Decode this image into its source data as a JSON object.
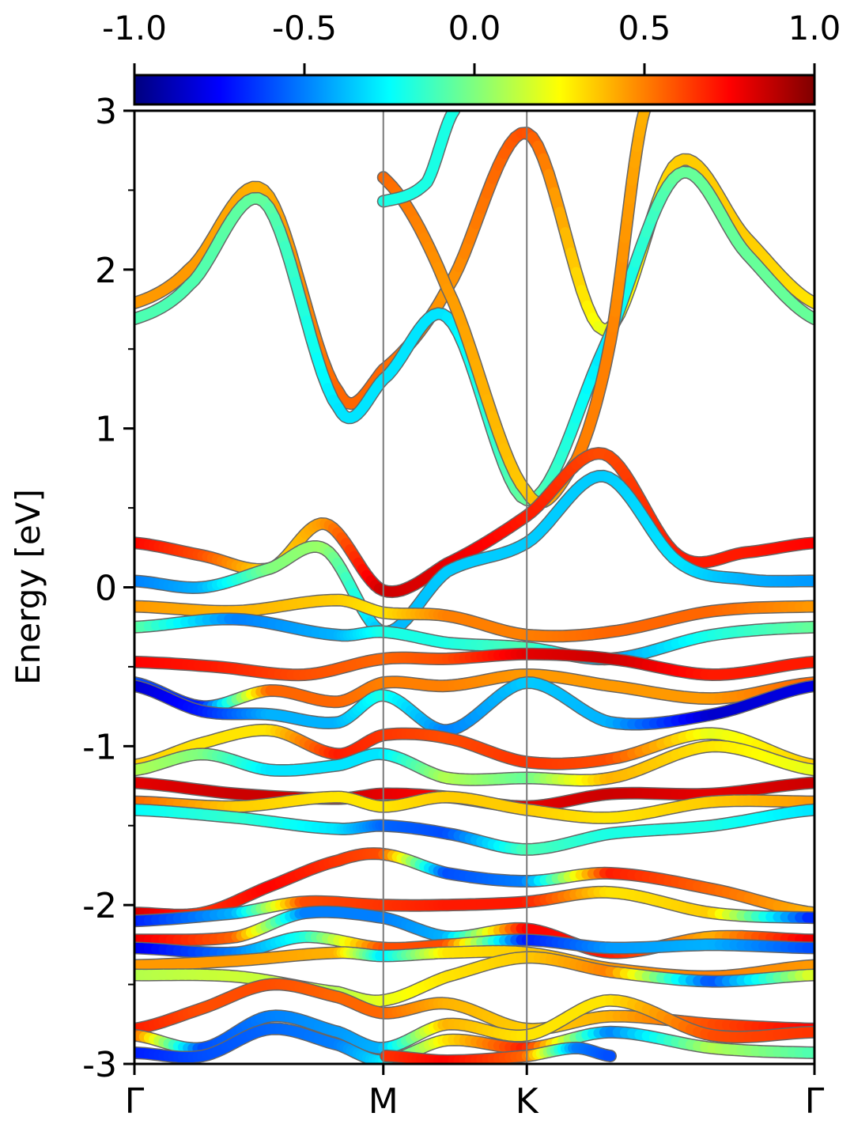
{
  "chart_data": {
    "type": "line",
    "title": "",
    "xlabel": "",
    "ylabel": "Energy [eV]",
    "ylim": [
      -3,
      3
    ],
    "yticks": [
      {
        "value": 3,
        "label": "3"
      },
      {
        "value": 2,
        "label": "2"
      },
      {
        "value": 1,
        "label": "1"
      },
      {
        "value": 0,
        "label": "0"
      },
      {
        "value": -1,
        "label": "-1"
      },
      {
        "value": -2,
        "label": "-2"
      },
      {
        "value": -3,
        "label": "-3"
      }
    ],
    "yminor": [
      2.5,
      1.5,
      0.5,
      -0.5,
      -1.5,
      -2.5
    ],
    "kpoints": [
      {
        "label": "Γ",
        "x": 0.0
      },
      {
        "label": "M",
        "x": 0.366
      },
      {
        "label": "K",
        "x": 0.577
      },
      {
        "label": "Γ",
        "x": 1.0
      }
    ],
    "colorbar": {
      "range": [
        -1.0,
        1.0
      ],
      "ticks": [
        {
          "value": -1.0,
          "label": "-1.0"
        },
        {
          "value": -0.5,
          "label": "-0.5"
        },
        {
          "value": 0.0,
          "label": "0.0"
        },
        {
          "value": 0.5,
          "label": "0.5"
        },
        {
          "value": 1.0,
          "label": "1.0"
        }
      ],
      "colormap": [
        "#00007f",
        "#0000ff",
        "#007fff",
        "#00ffff",
        "#7fff7f",
        "#ffff00",
        "#ff7f00",
        "#ff0000",
        "#7f0000"
      ]
    },
    "series": [
      {
        "x": [
          0,
          0.08,
          0.19,
          0.3,
          0.366,
          0.46,
          0.577,
          0.69,
          0.8,
          0.9,
          1.0
        ],
        "y": [
          1.79,
          2.0,
          2.5,
          1.23,
          1.37,
          1.88,
          2.86,
          1.62,
          2.68,
          2.2,
          1.79
        ],
        "c": [
          0.45,
          0.45,
          0.4,
          0.55,
          0.55,
          0.45,
          0.6,
          0.2,
          0.35,
          0.35,
          0.3
        ]
      },
      {
        "x": [
          0,
          0.08,
          0.19,
          0.3,
          0.366,
          0.46,
          0.577,
          0.69,
          0.8,
          0.9,
          1.0
        ],
        "y": [
          1.69,
          1.9,
          2.43,
          1.13,
          1.31,
          1.7,
          0.55,
          1.5,
          2.6,
          2.1,
          1.69
        ],
        "c": [
          -0.1,
          -0.1,
          -0.05,
          -0.3,
          -0.3,
          -0.3,
          -0.05,
          -0.3,
          -0.05,
          -0.05,
          -0.05
        ]
      },
      {
        "x": [
          0.366,
          0.46,
          0.577,
          0.65,
          0.7,
          0.75
        ],
        "y": [
          2.58,
          1.88,
          0.6,
          0.8,
          1.55,
          3.0
        ],
        "c": [
          0.55,
          0.45,
          0.35,
          0.5,
          0.5,
          0.4
        ]
      },
      {
        "x": [
          0.366,
          0.43,
          0.47
        ],
        "y": [
          2.43,
          2.55,
          3.0
        ],
        "c": [
          -0.2,
          -0.2,
          -0.2
        ]
      },
      {
        "x": [
          0.0,
          0.1,
          0.2,
          0.28,
          0.366,
          0.46,
          0.577,
          0.69,
          0.8,
          0.9,
          1.0
        ],
        "y": [
          0.28,
          0.2,
          0.12,
          0.4,
          -0.02,
          0.15,
          0.45,
          0.84,
          0.2,
          0.22,
          0.28
        ],
        "c": [
          0.75,
          0.6,
          0.3,
          0.45,
          0.85,
          0.8,
          0.7,
          0.6,
          0.7,
          0.7,
          0.75
        ]
      },
      {
        "x": [
          0.0,
          0.1,
          0.2,
          0.28,
          0.366,
          0.46,
          0.577,
          0.69,
          0.8,
          0.9,
          1.0
        ],
        "y": [
          0.04,
          0.0,
          0.12,
          0.24,
          -0.28,
          0.1,
          0.28,
          0.7,
          0.16,
          0.05,
          0.04
        ],
        "c": [
          -0.5,
          -0.4,
          0.0,
          0.05,
          -0.4,
          -0.35,
          -0.35,
          -0.35,
          -0.3,
          -0.4,
          -0.45
        ]
      },
      {
        "x": [
          0.0,
          0.15,
          0.3,
          0.366,
          0.46,
          0.577,
          0.7,
          0.85,
          1.0
        ],
        "y": [
          -0.12,
          -0.15,
          -0.08,
          -0.16,
          -0.18,
          -0.3,
          -0.28,
          -0.15,
          -0.12
        ],
        "c": [
          0.45,
          0.4,
          0.35,
          0.3,
          0.5,
          0.5,
          0.55,
          0.55,
          0.45
        ]
      },
      {
        "x": [
          0.0,
          0.15,
          0.3,
          0.366,
          0.46,
          0.577,
          0.7,
          0.85,
          1.0
        ],
        "y": [
          -0.25,
          -0.2,
          -0.3,
          -0.28,
          -0.35,
          -0.38,
          -0.45,
          -0.3,
          -0.25
        ],
        "c": [
          -0.05,
          -0.5,
          -0.4,
          -0.2,
          -0.2,
          -0.1,
          -0.45,
          -0.2,
          -0.05
        ]
      },
      {
        "x": [
          0.0,
          0.12,
          0.25,
          0.366,
          0.46,
          0.577,
          0.7,
          0.85,
          1.0
        ],
        "y": [
          -0.47,
          -0.5,
          -0.55,
          -0.45,
          -0.45,
          -0.42,
          -0.45,
          -0.55,
          -0.47
        ],
        "c": [
          0.75,
          0.7,
          0.6,
          0.55,
          0.6,
          0.8,
          0.85,
          0.7,
          0.7
        ]
      },
      {
        "x": [
          0.0,
          0.1,
          0.2,
          0.3,
          0.366,
          0.46,
          0.577,
          0.7,
          0.85,
          1.0
        ],
        "y": [
          -0.6,
          -0.75,
          -0.65,
          -0.72,
          -0.6,
          -0.62,
          -0.55,
          -0.62,
          -0.7,
          -0.6
        ],
        "c": [
          -0.6,
          -0.7,
          0.55,
          0.55,
          0.5,
          0.5,
          0.45,
          0.45,
          0.45,
          0.55
        ]
      },
      {
        "x": [
          0.0,
          0.1,
          0.2,
          0.3,
          0.366,
          0.46,
          0.577,
          0.7,
          0.85,
          1.0
        ],
        "y": [
          -0.62,
          -0.78,
          -0.8,
          -0.85,
          -0.68,
          -0.9,
          -0.6,
          -0.85,
          -0.8,
          -0.62
        ],
        "c": [
          -0.85,
          -0.7,
          -0.4,
          -0.4,
          -0.2,
          -0.5,
          -0.35,
          -0.4,
          -0.85,
          -0.8
        ]
      },
      {
        "x": [
          0.0,
          0.1,
          0.2,
          0.3,
          0.366,
          0.46,
          0.577,
          0.7,
          0.85,
          1.0
        ],
        "y": [
          -1.12,
          -0.98,
          -0.9,
          -1.05,
          -0.93,
          -0.95,
          -1.1,
          -1.08,
          -0.92,
          -1.12
        ],
        "c": [
          0.35,
          0.3,
          0.3,
          0.7,
          0.65,
          0.6,
          0.65,
          0.6,
          0.2,
          0.35
        ]
      },
      {
        "x": [
          0.0,
          0.1,
          0.2,
          0.3,
          0.366,
          0.46,
          0.577,
          0.7,
          0.85,
          1.0
        ],
        "y": [
          -1.15,
          -1.05,
          -1.15,
          -1.12,
          -1.05,
          -1.2,
          -1.2,
          -1.2,
          -1.0,
          -1.15
        ],
        "c": [
          0.1,
          0.0,
          -0.3,
          -0.3,
          -0.3,
          0.1,
          -0.05,
          0.4,
          0.3,
          0.2
        ]
      },
      {
        "x": [
          0.0,
          0.15,
          0.3,
          0.366,
          0.46,
          0.577,
          0.7,
          0.85,
          1.0
        ],
        "y": [
          -1.23,
          -1.3,
          -1.33,
          -1.3,
          -1.32,
          -1.38,
          -1.3,
          -1.3,
          -1.23
        ],
        "c": [
          0.8,
          0.85,
          0.85,
          0.8,
          0.75,
          0.8,
          0.85,
          0.8,
          0.85
        ]
      },
      {
        "x": [
          0.0,
          0.15,
          0.3,
          0.366,
          0.46,
          0.577,
          0.7,
          0.85,
          1.0
        ],
        "y": [
          -1.35,
          -1.38,
          -1.32,
          -1.38,
          -1.32,
          -1.4,
          -1.45,
          -1.35,
          -1.35
        ],
        "c": [
          0.55,
          0.35,
          0.3,
          0.3,
          0.35,
          0.35,
          0.3,
          0.35,
          0.45
        ]
      },
      {
        "x": [
          0.0,
          0.15,
          0.3,
          0.366,
          0.46,
          0.577,
          0.7,
          0.85,
          1.0
        ],
        "y": [
          -1.4,
          -1.45,
          -1.52,
          -1.5,
          -1.55,
          -1.65,
          -1.55,
          -1.5,
          -1.4
        ],
        "c": [
          -0.25,
          -0.15,
          -0.3,
          -0.55,
          -0.6,
          -0.1,
          -0.2,
          -0.2,
          -0.3
        ]
      },
      {
        "x": [
          0.0,
          0.1,
          0.2,
          0.3,
          0.366,
          0.46,
          0.577,
          0.7,
          0.85,
          1.0
        ],
        "y": [
          -2.05,
          -2.05,
          -1.88,
          -1.72,
          -1.68,
          -1.8,
          -1.85,
          -1.8,
          -1.9,
          -2.05
        ],
        "c": [
          0.85,
          0.65,
          0.75,
          0.65,
          0.6,
          -0.6,
          -0.5,
          0.7,
          0.55,
          0.4
        ]
      },
      {
        "x": [
          0.0,
          0.15,
          0.25,
          0.366,
          0.46,
          0.577,
          0.7,
          0.85,
          1.0
        ],
        "y": [
          -2.1,
          -2.05,
          -1.98,
          -2.0,
          -2.0,
          -1.98,
          -1.92,
          -2.05,
          -2.08
        ],
        "c": [
          -0.7,
          -0.4,
          0.6,
          0.65,
          0.7,
          0.7,
          0.3,
          0.35,
          -0.7
        ]
      },
      {
        "x": [
          0.0,
          0.15,
          0.25,
          0.366,
          0.46,
          0.577,
          0.7,
          0.85,
          1.0
        ],
        "y": [
          -2.22,
          -2.2,
          -2.05,
          -2.08,
          -2.2,
          -2.15,
          -2.3,
          -2.2,
          -2.22
        ],
        "c": [
          0.8,
          0.55,
          -0.5,
          -0.5,
          -0.4,
          0.75,
          0.7,
          0.4,
          0.8
        ]
      },
      {
        "x": [
          0.0,
          0.15,
          0.25,
          0.366,
          0.46,
          0.577,
          0.7,
          0.85,
          1.0
        ],
        "y": [
          -2.27,
          -2.3,
          -2.2,
          -2.27,
          -2.25,
          -2.22,
          -2.27,
          -2.25,
          -2.27
        ],
        "c": [
          -0.8,
          -0.5,
          -0.2,
          0.6,
          0.6,
          -0.7,
          -0.45,
          -0.4,
          -0.6
        ]
      },
      {
        "x": [
          0.0,
          0.15,
          0.3,
          0.366,
          0.46,
          0.577,
          0.7,
          0.85,
          1.0
        ],
        "y": [
          -2.38,
          -2.35,
          -2.3,
          -2.32,
          -2.3,
          -2.3,
          -2.4,
          -2.45,
          -2.38
        ],
        "c": [
          0.45,
          0.45,
          0.4,
          -0.3,
          0.3,
          0.35,
          0.45,
          0.5,
          0.45
        ]
      },
      {
        "x": [
          0.0,
          0.15,
          0.3,
          0.366,
          0.46,
          0.577,
          0.7,
          0.85,
          1.0
        ],
        "y": [
          -2.44,
          -2.45,
          -2.55,
          -2.6,
          -2.45,
          -2.33,
          -2.42,
          -2.48,
          -2.44
        ],
        "c": [
          0.1,
          0.15,
          0.1,
          0.2,
          0.3,
          0.35,
          0.5,
          -0.6,
          0.2
        ]
      },
      {
        "x": [
          0.0,
          0.1,
          0.2,
          0.3,
          0.366,
          0.46,
          0.577,
          0.7,
          0.85,
          1.0
        ],
        "y": [
          -2.78,
          -2.65,
          -2.5,
          -2.58,
          -2.68,
          -2.62,
          -2.78,
          -2.7,
          -2.75,
          -2.78
        ],
        "c": [
          0.7,
          0.6,
          0.6,
          0.55,
          0.55,
          0.4,
          0.35,
          0.4,
          0.6,
          0.75
        ]
      },
      {
        "x": [
          0.0,
          0.1,
          0.2,
          0.3,
          0.366,
          0.46,
          0.577,
          0.7,
          0.85,
          1.0
        ],
        "y": [
          -2.82,
          -2.9,
          -2.7,
          -2.8,
          -2.9,
          -2.75,
          -2.82,
          -2.6,
          -2.82,
          -2.8
        ],
        "c": [
          0.6,
          -0.6,
          -0.5,
          -0.45,
          -0.4,
          0.4,
          0.3,
          0.3,
          0.6,
          0.65
        ]
      },
      {
        "x": [
          0.0,
          0.1,
          0.2,
          0.3,
          0.366,
          0.46,
          0.577,
          0.7,
          0.85,
          1.0
        ],
        "y": [
          -2.93,
          -2.95,
          -2.78,
          -2.88,
          -2.98,
          -2.85,
          -2.9,
          -2.8,
          -2.9,
          -2.93
        ],
        "c": [
          -0.7,
          -0.6,
          -0.55,
          -0.5,
          -0.3,
          0.3,
          0.7,
          -0.5,
          0.1,
          -0.1
        ]
      },
      {
        "x": [
          0.37,
          0.46,
          0.577,
          0.65,
          0.7
        ],
        "y": [
          -2.95,
          -2.98,
          -2.95,
          -2.9,
          -2.95
        ],
        "c": [
          0.65,
          0.75,
          0.55,
          -0.5,
          -0.6
        ]
      }
    ]
  }
}
